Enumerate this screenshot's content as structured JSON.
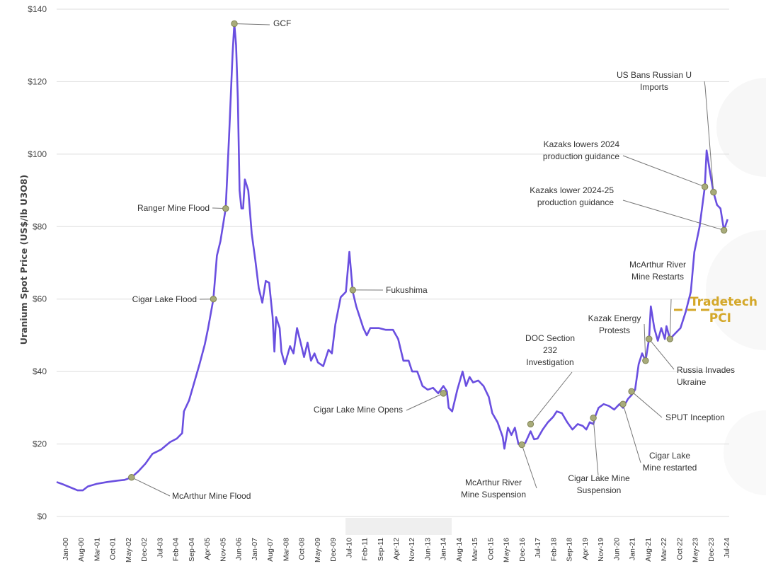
{
  "chart_data": {
    "type": "line",
    "ylabel": "Uranium Spot Price (US$/lb U3O8)",
    "ylim": [
      0,
      140
    ],
    "y_ticks": [
      0,
      20,
      40,
      60,
      80,
      100,
      120,
      140
    ],
    "y_tick_labels": [
      "$0",
      "$20",
      "$40",
      "$60",
      "$80",
      "$100",
      "$120",
      "$140"
    ],
    "x_tick_labels": [
      "Jan-00",
      "Aug-00",
      "Mar-01",
      "Oct-01",
      "May-02",
      "Dec-02",
      "Jul-03",
      "Feb-04",
      "Sep-04",
      "Apr-05",
      "Nov-05",
      "Jun-06",
      "Jan-07",
      "Aug-07",
      "Mar-08",
      "Oct-08",
      "May-09",
      "Dec-09",
      "Jul-10",
      "Feb-11",
      "Sep-11",
      "Apr-12",
      "Nov-12",
      "Jun-13",
      "Jan-14",
      "Aug-14",
      "Mar-15",
      "Oct-15",
      "May-16",
      "Dec-16",
      "Jul-17",
      "Feb-18",
      "Sep-18",
      "Apr-19",
      "Nov-19",
      "Jun-20",
      "Jan-21",
      "Aug-21",
      "Mar-22",
      "Oct-22",
      "May-23",
      "Dec-23",
      "Jul-24"
    ],
    "grid": true,
    "legend": {
      "position": "right",
      "entries": [
        {
          "label": "Tradetech",
          "style": "solid"
        },
        {
          "label": "PCI",
          "style": "dashed"
        }
      ]
    },
    "series": [
      {
        "name": "Tradetech",
        "color": "#6a4fe0",
        "points": [
          [
            "2000-01",
            9.5
          ],
          [
            "2000-05",
            8.8
          ],
          [
            "2000-09",
            8.0
          ],
          [
            "2001-01",
            7.2
          ],
          [
            "2001-04",
            7.2
          ],
          [
            "2001-07",
            8.3
          ],
          [
            "2001-12",
            9.0
          ],
          [
            "2002-06",
            9.5
          ],
          [
            "2002-12",
            9.9
          ],
          [
            "2003-04",
            10.1
          ],
          [
            "2003-08",
            10.8
          ],
          [
            "2003-12",
            12.5
          ],
          [
            "2004-04",
            14.6
          ],
          [
            "2004-08",
            17.3
          ],
          [
            "2005-01",
            18.5
          ],
          [
            "2005-06",
            20.5
          ],
          [
            "2005-10",
            21.5
          ],
          [
            "2006-01",
            23.0
          ],
          [
            "2006-02",
            29.0
          ],
          [
            "2006-05",
            32.0
          ],
          [
            "2006-08",
            37.0
          ],
          [
            "2006-11",
            42.0
          ],
          [
            "2007-02",
            47.5
          ],
          [
            "2007-04",
            52.0
          ],
          [
            "2007-07",
            60.0
          ],
          [
            "2007-09",
            72.0
          ],
          [
            "2007-11",
            76.0
          ],
          [
            "2008-02",
            85.0
          ],
          [
            "2008-04",
            105.0
          ],
          [
            "2008-06",
            128.0
          ],
          [
            "2008-07",
            136.0
          ],
          [
            "2008-08",
            130.0
          ],
          [
            "2008-09",
            115.0
          ],
          [
            "2008-10",
            90.0
          ],
          [
            "2008-11",
            85.0
          ],
          [
            "2008-12",
            85.0
          ],
          [
            "2009-01",
            93.0
          ],
          [
            "2009-03",
            90.0
          ],
          [
            "2009-05",
            78.0
          ],
          [
            "2009-07",
            71.0
          ],
          [
            "2009-09",
            63.0
          ],
          [
            "2009-11",
            59.0
          ],
          [
            "2010-01",
            65.0
          ],
          [
            "2010-03",
            64.5
          ],
          [
            "2010-05",
            55.0
          ],
          [
            "2010-06",
            45.5
          ],
          [
            "2010-07",
            55.0
          ],
          [
            "2010-09",
            52.0
          ],
          [
            "2010-10",
            45.5
          ],
          [
            "2010-12",
            42.0
          ],
          [
            "2011-03",
            47.0
          ],
          [
            "2011-05",
            45.0
          ],
          [
            "2011-07",
            52.0
          ],
          [
            "2011-09",
            48.0
          ],
          [
            "2011-11",
            44.0
          ],
          [
            "2012-01",
            48.0
          ],
          [
            "2012-03",
            43.0
          ],
          [
            "2012-05",
            45.0
          ],
          [
            "2012-07",
            42.5
          ],
          [
            "2012-10",
            41.5
          ],
          [
            "2013-01",
            46.0
          ],
          [
            "2013-03",
            45.0
          ],
          [
            "2013-05",
            53.0
          ],
          [
            "2013-08",
            60.5
          ],
          [
            "2013-11",
            62.0
          ],
          [
            "2014-01",
            73.0
          ],
          [
            "2014-03",
            62.0
          ],
          [
            "2014-05",
            58.0
          ],
          [
            "2014-07",
            55.0
          ],
          [
            "2014-09",
            52.0
          ],
          [
            "2014-11",
            50.0
          ],
          [
            "2015-01",
            52.0
          ],
          [
            "2015-06",
            52.0
          ],
          [
            "2015-10",
            51.5
          ],
          [
            "2016-02",
            51.5
          ],
          [
            "2016-05",
            49.0
          ],
          [
            "2016-08",
            43.0
          ],
          [
            "2016-11",
            43.0
          ],
          [
            "2017-01",
            40.0
          ],
          [
            "2017-04",
            40.0
          ],
          [
            "2017-07",
            36.0
          ],
          [
            "2017-10",
            35.0
          ],
          [
            "2018-01",
            35.5
          ],
          [
            "2018-04",
            34.0
          ],
          [
            "2018-07",
            36.0
          ],
          [
            "2018-09",
            34.5
          ],
          [
            "2018-10",
            30.0
          ],
          [
            "2018-12",
            29.0
          ],
          [
            "2019-03",
            35.0
          ],
          [
            "2019-06",
            40.0
          ],
          [
            "2019-08",
            36.0
          ],
          [
            "2019-10",
            38.5
          ],
          [
            "2019-12",
            37.0
          ],
          [
            "2020-03",
            37.5
          ],
          [
            "2020-06",
            36.0
          ],
          [
            "2020-09",
            33.0
          ],
          [
            "2020-11",
            28.5
          ],
          [
            "2021-02",
            26.0
          ],
          [
            "2021-05",
            22.0
          ],
          [
            "2021-06",
            18.7
          ],
          [
            "2021-08",
            24.5
          ],
          [
            "2021-10",
            22.5
          ],
          [
            "2021-12",
            24.5
          ],
          [
            "2022-02",
            20.0
          ],
          [
            "2022-04",
            19.5
          ],
          [
            "2022-06",
            20.3
          ],
          [
            "2022-09",
            23.5
          ],
          [
            "2022-11",
            21.3
          ],
          [
            "2023-01",
            21.5
          ],
          [
            "2023-04",
            24.0
          ],
          [
            "2023-07",
            26.0
          ],
          [
            "2023-10",
            27.5
          ],
          [
            "2023-12",
            29.0
          ],
          [
            "2024-03",
            28.5
          ],
          [
            "2024-06",
            26.0
          ],
          [
            "2024-09",
            24.0
          ],
          [
            "2024-12",
            25.5
          ],
          [
            "2025-03",
            25.0
          ],
          [
            "2025-05",
            24.0
          ],
          [
            "2025-07",
            26.0
          ],
          [
            "2025-09",
            25.5
          ],
          [
            "2025-10",
            27.5
          ],
          [
            "2025-12",
            30.0
          ],
          [
            "2026-03",
            31.0
          ],
          [
            "2026-06",
            30.5
          ],
          [
            "2026-09",
            29.5
          ],
          [
            "2026-12",
            31.0
          ],
          [
            "2027-02",
            30.0
          ],
          [
            "2027-05",
            32.5
          ],
          [
            "2027-07",
            33.5
          ],
          [
            "2027-09",
            35.0
          ],
          [
            "2027-11",
            42.0
          ],
          [
            "2028-01",
            45.0
          ],
          [
            "2028-03",
            43.0
          ],
          [
            "2028-05",
            49.0
          ],
          [
            "2028-06",
            58.0
          ],
          [
            "2028-08",
            52.0
          ],
          [
            "2028-10",
            48.5
          ],
          [
            "2028-12",
            52.0
          ],
          [
            "2029-02",
            49.0
          ],
          [
            "2029-03",
            52.5
          ],
          [
            "2029-05",
            49.0
          ],
          [
            "2029-08",
            50.5
          ],
          [
            "2029-11",
            52.0
          ],
          [
            "2030-02",
            56.5
          ],
          [
            "2030-05",
            62.0
          ],
          [
            "2030-07",
            73.0
          ],
          [
            "2030-10",
            80.0
          ],
          [
            "2031-01",
            91.0
          ],
          [
            "2031-02",
            101.0
          ],
          [
            "2031-04",
            95.0
          ],
          [
            "2031-06",
            89.5
          ],
          [
            "2031-08",
            86.0
          ],
          [
            "2031-10",
            85.0
          ],
          [
            "2031-12",
            79.0
          ],
          [
            "2032-02",
            82.0
          ]
        ]
      }
    ],
    "annotations": [
      {
        "lines": [
          "GCF"
        ],
        "x": "2008-07",
        "y": 136.0,
        "anchor": "start"
      },
      {
        "lines": [
          "Ranger Mine Flood"
        ],
        "x": "2008-02",
        "y": 85.0,
        "anchor": "end"
      },
      {
        "lines": [
          "Cigar Lake Flood"
        ],
        "x": "2007-07",
        "y": 60.0,
        "anchor": "end"
      },
      {
        "lines": [
          "McArthur Mine Flood"
        ],
        "x": "2003-08",
        "y": 10.8,
        "anchor": "start"
      },
      {
        "lines": [
          "Fukushima"
        ],
        "x": "2014-03",
        "y": 62.5,
        "anchor": "start"
      },
      {
        "lines": [
          "Cigar Lake Mine Opens"
        ],
        "x": "2018-07",
        "y": 34.0,
        "anchor": "end"
      },
      {
        "lines": [
          "McArthur River",
          "Mine Suspension"
        ],
        "x": "2022-04",
        "y": 19.8,
        "anchor": "middle"
      },
      {
        "lines": [
          "DOC Section",
          "232",
          "Investigation"
        ],
        "x": "2022-09",
        "y": 25.5,
        "anchor": "middle"
      },
      {
        "lines": [
          "Cigar Lake Mine",
          "Suspension"
        ],
        "x": "2025-09",
        "y": 27.2,
        "anchor": "middle"
      },
      {
        "lines": [
          "Cigar Lake",
          "Mine restarted"
        ],
        "x": "2027-02",
        "y": 31.0,
        "anchor": "middle"
      },
      {
        "lines": [
          "SPUT Inception"
        ],
        "x": "2027-07",
        "y": 34.5,
        "anchor": "start"
      },
      {
        "lines": [
          "Kazak Energy",
          "Protests"
        ],
        "x": "2028-03",
        "y": 43.0,
        "anchor": "middle"
      },
      {
        "lines": [
          "Russia Invades",
          "Ukraine"
        ],
        "x": "2028-05",
        "y": 49.0,
        "anchor": "start"
      },
      {
        "lines": [
          "McArthur River",
          "Mine Restarts"
        ],
        "x": "2029-05",
        "y": 49.0,
        "anchor": "middle"
      },
      {
        "lines": [
          "Kazaks lowers 2024",
          "production guidance"
        ],
        "x": "2031-01",
        "y": 91.0,
        "anchor": "end"
      },
      {
        "lines": [
          "Kazaks lower 2024-25",
          "production guidance"
        ],
        "x": "2031-12",
        "y": 79.0,
        "anchor": "end"
      },
      {
        "lines": [
          "US Bans Russian U",
          "Imports"
        ],
        "x": "2031-06",
        "y": 89.5,
        "anchor": "middle"
      }
    ]
  }
}
